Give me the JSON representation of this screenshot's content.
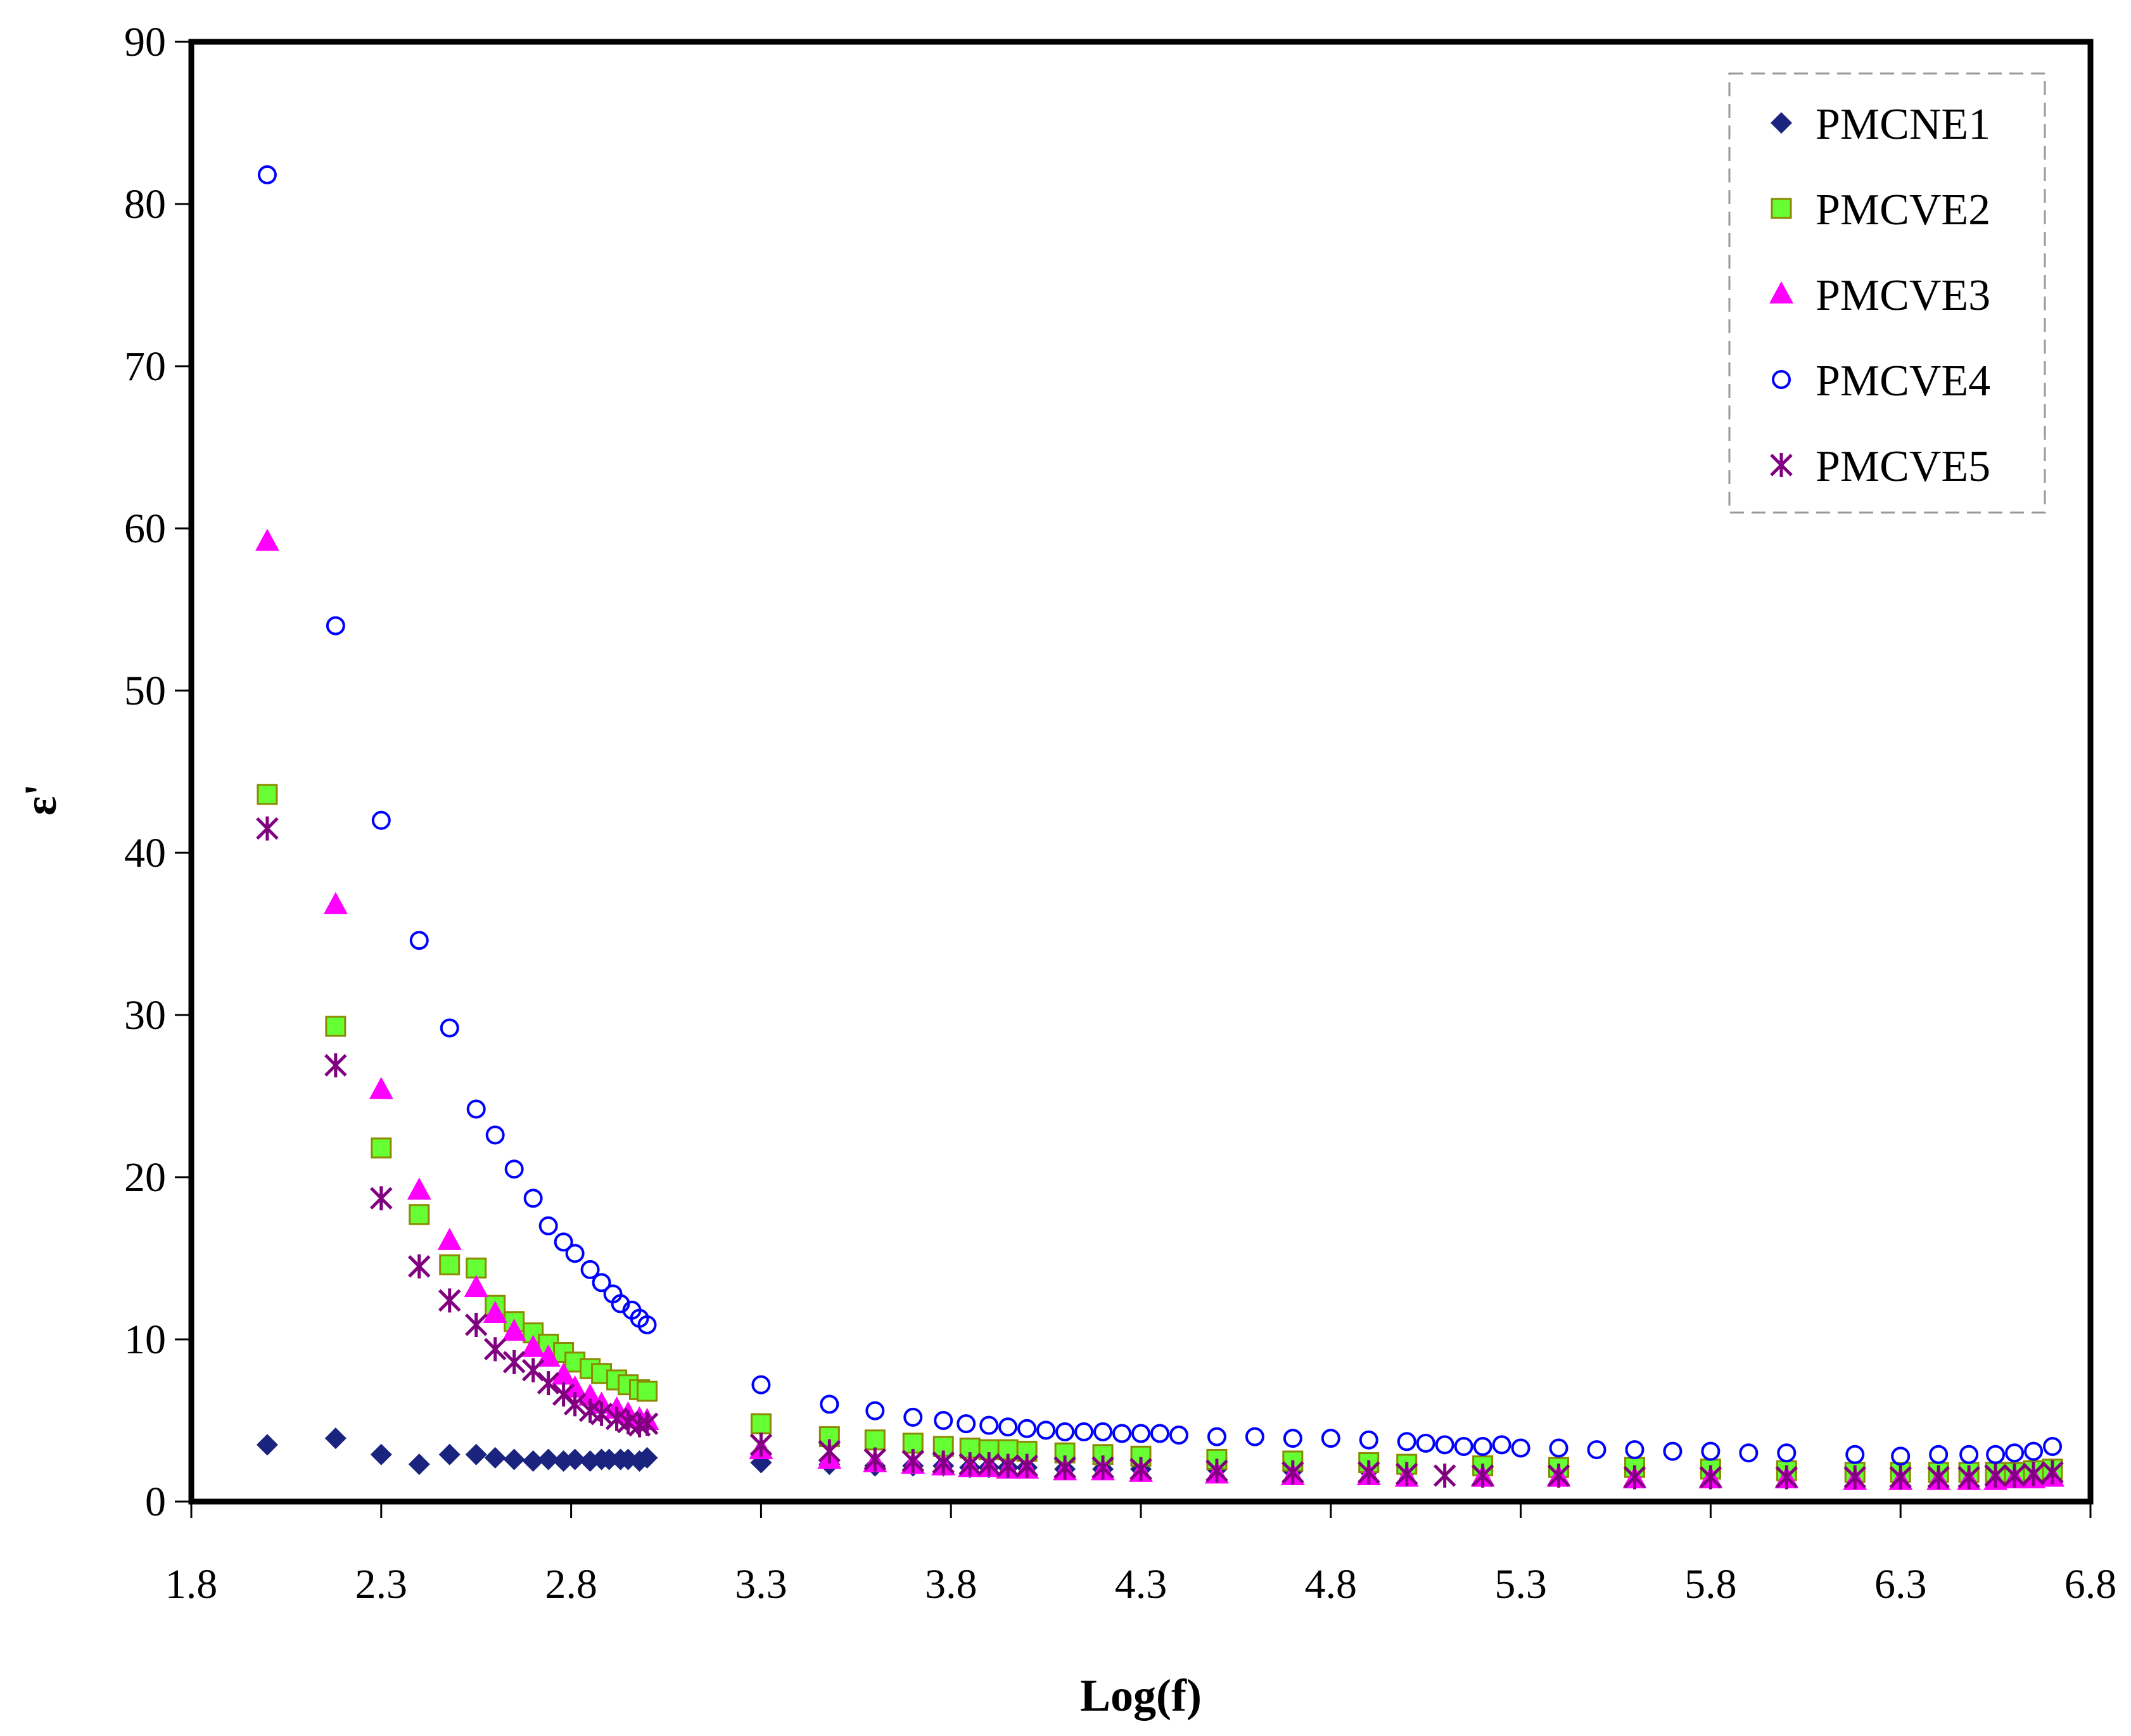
{
  "chart_data": {
    "type": "scatter",
    "title": "",
    "xlabel": "Log(f)",
    "ylabel": "ε'",
    "xlim": [
      1.8,
      6.8
    ],
    "ylim": [
      0,
      90
    ],
    "xticks": [
      "1.8",
      "2.3",
      "2.8",
      "3.3",
      "3.8",
      "4.3",
      "4.8",
      "5.3",
      "5.8",
      "6.3",
      "6.8"
    ],
    "yticks": [
      "0",
      "10",
      "20",
      "30",
      "40",
      "50",
      "60",
      "70",
      "80",
      "90"
    ],
    "legend_position": "top-right",
    "grid": false,
    "series": [
      {
        "name": "PMCNE1",
        "marker": "diamond",
        "color": "#1a237e",
        "x": [
          2.0,
          2.18,
          2.3,
          2.4,
          2.48,
          2.55,
          2.6,
          2.65,
          2.7,
          2.74,
          2.78,
          2.81,
          2.85,
          2.88,
          2.9,
          2.93,
          2.95,
          2.98,
          3.0,
          3.3,
          3.48,
          3.6,
          3.7,
          3.78,
          3.85,
          3.9,
          3.95,
          4.0,
          4.1,
          4.2,
          4.3,
          4.5,
          4.7,
          4.9,
          5.0,
          5.2,
          5.4,
          5.6,
          5.8,
          6.0,
          6.18,
          6.3,
          6.4,
          6.48,
          6.55,
          6.6,
          6.65,
          6.7
        ],
        "y": [
          3.5,
          3.9,
          2.9,
          2.3,
          2.9,
          2.9,
          2.7,
          2.6,
          2.5,
          2.6,
          2.5,
          2.6,
          2.5,
          2.6,
          2.6,
          2.6,
          2.6,
          2.5,
          2.7,
          2.4,
          2.3,
          2.2,
          2.2,
          2.2,
          2.1,
          2.1,
          2.1,
          2.1,
          2.0,
          2.0,
          2.0,
          2.0,
          1.9,
          1.9,
          1.9,
          1.9,
          1.8,
          1.8,
          1.8,
          1.8,
          1.6,
          1.6,
          1.6,
          1.6,
          1.6,
          1.7,
          1.7,
          1.8
        ]
      },
      {
        "name": "PMCVE2",
        "marker": "square",
        "color": "#66ff33",
        "x": [
          2.0,
          2.18,
          2.3,
          2.4,
          2.48,
          2.55,
          2.6,
          2.65,
          2.7,
          2.74,
          2.78,
          2.81,
          2.85,
          2.88,
          2.92,
          2.95,
          2.98,
          3.0,
          3.3,
          3.48,
          3.6,
          3.7,
          3.78,
          3.85,
          3.9,
          3.95,
          4.0,
          4.1,
          4.2,
          4.3,
          4.5,
          4.7,
          4.9,
          5.0,
          5.2,
          5.4,
          5.6,
          5.8,
          6.0,
          6.18,
          6.3,
          6.4,
          6.48,
          6.55,
          6.6,
          6.65,
          6.7
        ],
        "y": [
          43.6,
          29.3,
          21.8,
          17.7,
          14.6,
          14.4,
          12.1,
          11.1,
          10.4,
          9.7,
          9.2,
          8.6,
          8.2,
          7.9,
          7.5,
          7.2,
          6.9,
          6.8,
          4.8,
          4.0,
          3.8,
          3.6,
          3.4,
          3.3,
          3.2,
          3.2,
          3.1,
          3.0,
          2.9,
          2.8,
          2.6,
          2.5,
          2.4,
          2.3,
          2.2,
          2.1,
          2.1,
          2.0,
          1.9,
          1.8,
          1.8,
          1.8,
          1.8,
          1.8,
          1.8,
          1.9,
          2.0
        ]
      },
      {
        "name": "PMCVE3",
        "marker": "triangle",
        "color": "#ff00ff",
        "x": [
          2.0,
          2.18,
          2.3,
          2.4,
          2.48,
          2.55,
          2.6,
          2.65,
          2.7,
          2.74,
          2.78,
          2.81,
          2.85,
          2.88,
          2.92,
          2.95,
          2.98,
          3.0,
          3.3,
          3.48,
          3.6,
          3.7,
          3.78,
          3.85,
          3.9,
          3.95,
          4.0,
          4.1,
          4.2,
          4.3,
          4.5,
          4.7,
          4.9,
          5.0,
          5.2,
          5.4,
          5.6,
          5.8,
          6.0,
          6.18,
          6.3,
          6.4,
          6.48,
          6.55,
          6.6,
          6.65,
          6.7
        ],
        "y": [
          59.2,
          36.8,
          25.4,
          19.2,
          16.1,
          13.2,
          11.6,
          10.5,
          9.5,
          8.9,
          7.8,
          7.0,
          6.5,
          6.0,
          5.7,
          5.4,
          5.1,
          5.0,
          3.2,
          2.6,
          2.4,
          2.3,
          2.2,
          2.1,
          2.1,
          2.0,
          2.0,
          1.9,
          1.9,
          1.8,
          1.7,
          1.6,
          1.6,
          1.5,
          1.5,
          1.5,
          1.4,
          1.4,
          1.4,
          1.3,
          1.3,
          1.3,
          1.3,
          1.3,
          1.4,
          1.4,
          1.5
        ]
      },
      {
        "name": "PMCVE4",
        "marker": "circle-open",
        "color": "#0000ff",
        "x": [
          2.0,
          2.18,
          2.3,
          2.4,
          2.48,
          2.55,
          2.6,
          2.65,
          2.7,
          2.74,
          2.78,
          2.81,
          2.85,
          2.88,
          2.91,
          2.93,
          2.96,
          2.98,
          3.0,
          3.3,
          3.48,
          3.6,
          3.7,
          3.78,
          3.84,
          3.9,
          3.95,
          4.0,
          4.05,
          4.1,
          4.15,
          4.2,
          4.25,
          4.3,
          4.35,
          4.4,
          4.5,
          4.6,
          4.7,
          4.8,
          4.9,
          5.0,
          5.05,
          5.1,
          5.15,
          5.2,
          5.25,
          5.3,
          5.4,
          5.5,
          5.6,
          5.7,
          5.8,
          5.9,
          6.0,
          6.18,
          6.3,
          6.4,
          6.48,
          6.55,
          6.6,
          6.65,
          6.7
        ],
        "y": [
          81.8,
          54.0,
          42.0,
          34.6,
          29.2,
          24.2,
          22.6,
          20.5,
          18.7,
          17.0,
          16.0,
          15.3,
          14.3,
          13.5,
          12.8,
          12.2,
          11.8,
          11.3,
          10.9,
          7.2,
          6.0,
          5.6,
          5.2,
          5.0,
          4.8,
          4.7,
          4.6,
          4.5,
          4.4,
          4.3,
          4.3,
          4.3,
          4.2,
          4.2,
          4.2,
          4.1,
          4.0,
          4.0,
          3.9,
          3.9,
          3.8,
          3.7,
          3.6,
          3.5,
          3.4,
          3.4,
          3.5,
          3.3,
          3.3,
          3.2,
          3.2,
          3.1,
          3.1,
          3.0,
          3.0,
          2.9,
          2.8,
          2.9,
          2.9,
          2.9,
          3.0,
          3.1,
          3.4
        ]
      },
      {
        "name": "PMCVE5",
        "marker": "asterisk",
        "color": "#800080",
        "x": [
          2.0,
          2.18,
          2.3,
          2.4,
          2.48,
          2.55,
          2.6,
          2.65,
          2.7,
          2.74,
          2.78,
          2.81,
          2.85,
          2.88,
          2.92,
          2.95,
          2.98,
          3.0,
          3.3,
          3.48,
          3.6,
          3.7,
          3.78,
          3.85,
          3.9,
          3.95,
          4.0,
          4.1,
          4.2,
          4.3,
          4.5,
          4.7,
          4.9,
          5.0,
          5.1,
          5.2,
          5.4,
          5.6,
          5.8,
          6.0,
          6.18,
          6.3,
          6.4,
          6.48,
          6.55,
          6.6,
          6.65,
          6.7
        ],
        "y": [
          41.5,
          26.9,
          18.7,
          14.5,
          12.4,
          10.9,
          9.4,
          8.6,
          8.1,
          7.3,
          6.6,
          6.0,
          5.6,
          5.4,
          5.1,
          4.9,
          4.7,
          4.8,
          3.5,
          3.1,
          2.6,
          2.5,
          2.4,
          2.3,
          2.3,
          2.2,
          2.2,
          2.1,
          2.1,
          2.0,
          1.9,
          1.8,
          1.8,
          1.7,
          1.6,
          1.6,
          1.6,
          1.5,
          1.5,
          1.5,
          1.5,
          1.5,
          1.5,
          1.5,
          1.6,
          1.6,
          1.7,
          1.8
        ]
      }
    ]
  }
}
